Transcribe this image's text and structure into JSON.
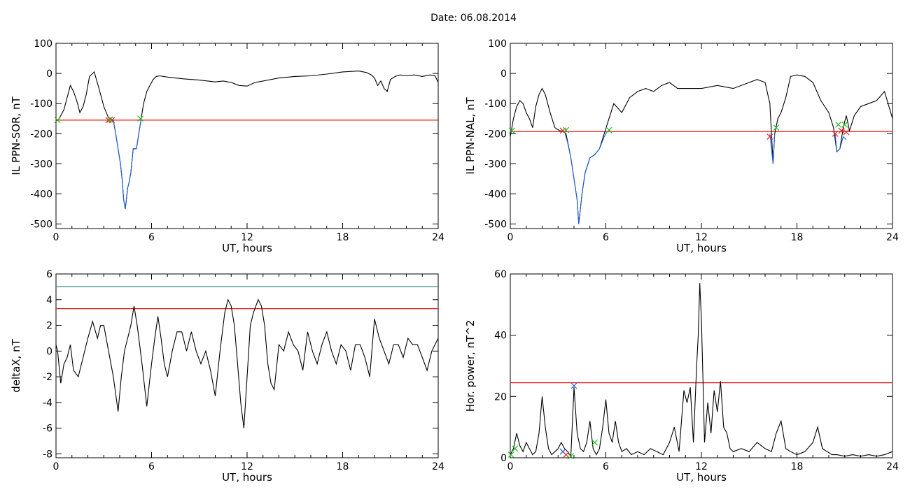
{
  "figure": {
    "title": "Date:  06.08.2014"
  },
  "chart_data": [
    {
      "id": "p1",
      "type": "line",
      "xlabel": "UT, hours",
      "ylabel": "IL PPN-SOR, nT",
      "xlim": [
        0,
        24
      ],
      "ylim": [
        -515,
        100
      ],
      "xticks": [
        0,
        6,
        12,
        18,
        24
      ],
      "yticks": [
        100,
        0,
        -100,
        -200,
        -300,
        -400,
        -500
      ],
      "series": [
        {
          "color": "#000000",
          "x": [
            0,
            0.2,
            0.5,
            0.7,
            0.9,
            1.1,
            1.3,
            1.5,
            1.7,
            1.9,
            2.1,
            2.4,
            2.7,
            3.0,
            3.3,
            3.45,
            3.6,
            3.75,
            3.9,
            4.05,
            4.15,
            4.25,
            4.35,
            4.5,
            4.6,
            4.7,
            4.85,
            4.95,
            5.05,
            5.2,
            5.35,
            5.5,
            5.7,
            5.9,
            6.1,
            6.3,
            6.5,
            7.0,
            8.0,
            9.0,
            10.0,
            10.5,
            11.0,
            11.5,
            12.0,
            12.5,
            13.0,
            14.0,
            15.0,
            16.0,
            17.0,
            18.0,
            19.0,
            19.5,
            19.8,
            20.0,
            20.2,
            20.4,
            20.6,
            20.8,
            21.0,
            21.3,
            21.6,
            22.0,
            22.5,
            23.0,
            23.5,
            23.8,
            24.0
          ],
          "y": [
            -160,
            -150,
            -120,
            -80,
            -40,
            -60,
            -90,
            -130,
            -110,
            -70,
            -10,
            5,
            -50,
            -110,
            -148,
            -152,
            -155,
            -200,
            -250,
            -300,
            -350,
            -420,
            -450,
            -380,
            -360,
            -330,
            -250,
            -250,
            -250,
            -200,
            -150,
            -100,
            -60,
            -40,
            -20,
            -10,
            -8,
            -12,
            -18,
            -22,
            -28,
            -25,
            -30,
            -40,
            -42,
            -30,
            -25,
            -15,
            -10,
            -8,
            -2,
            5,
            8,
            3,
            -5,
            -15,
            -40,
            -25,
            -50,
            -60,
            -20,
            -10,
            -5,
            -8,
            -5,
            -10,
            -5,
            -8,
            -30
          ]
        },
        {
          "color": "#1e5fd8",
          "x": [
            3.45,
            3.6,
            3.75,
            3.9,
            4.05,
            4.15,
            4.25,
            4.35,
            4.5,
            4.6,
            4.7,
            4.85,
            4.95,
            5.05,
            5.2,
            5.35
          ],
          "y": [
            -152,
            -155,
            -200,
            -250,
            -300,
            -350,
            -420,
            -450,
            -380,
            -360,
            -330,
            -250,
            -250,
            -250,
            -200,
            -150
          ]
        }
      ],
      "hlines": [
        {
          "y": -155,
          "color": "#e8201a"
        }
      ],
      "markers": [
        {
          "x": 0.1,
          "y": -155,
          "color": "#22bb22"
        },
        {
          "x": 3.3,
          "y": -155,
          "color": "#e8201a"
        },
        {
          "x": 3.5,
          "y": -155,
          "color": "#e8201a"
        },
        {
          "x": 3.4,
          "y": -153,
          "color": "#22bb22"
        },
        {
          "x": 5.3,
          "y": -150,
          "color": "#22bb22"
        }
      ]
    },
    {
      "id": "p2",
      "type": "line",
      "xlabel": "UT, hours",
      "ylabel": "IL PPN-NAL, nT",
      "xlim": [
        0,
        24
      ],
      "ylim": [
        -515,
        100
      ],
      "xticks": [
        0,
        6,
        12,
        18,
        24
      ],
      "yticks": [
        100,
        0,
        -100,
        -200,
        -300,
        -400,
        -500
      ],
      "series": [
        {
          "color": "#000000",
          "x": [
            0,
            0.2,
            0.4,
            0.6,
            0.8,
            1.0,
            1.2,
            1.4,
            1.6,
            1.8,
            2.0,
            2.2,
            2.5,
            2.8,
            3.1,
            3.3,
            3.5,
            3.8,
            4.0,
            4.2,
            4.3,
            4.5,
            4.7,
            5.0,
            5.3,
            5.6,
            5.9,
            6.2,
            6.5,
            7.0,
            7.5,
            8.0,
            8.5,
            9.0,
            9.5,
            10.0,
            10.5,
            11.0,
            12.0,
            13.0,
            14.0,
            15.0,
            15.5,
            16.0,
            16.3,
            16.5,
            16.6,
            16.8,
            17.0,
            17.3,
            17.6,
            18.0,
            18.5,
            19.0,
            19.5,
            20.0,
            20.3,
            20.5,
            20.7,
            20.9,
            21.1,
            21.3,
            21.6,
            22.0,
            22.5,
            23.0,
            23.5,
            24.0
          ],
          "y": [
            -210,
            -150,
            -110,
            -90,
            -100,
            -130,
            -150,
            -180,
            -110,
            -70,
            -50,
            -70,
            -130,
            -180,
            -190,
            -192,
            -200,
            -280,
            -350,
            -420,
            -500,
            -400,
            -330,
            -280,
            -270,
            -250,
            -200,
            -150,
            -100,
            -130,
            -80,
            -60,
            -50,
            -60,
            -40,
            -30,
            -50,
            -50,
            -50,
            -40,
            -50,
            -30,
            -20,
            -30,
            -100,
            -300,
            -200,
            -150,
            -130,
            -80,
            -10,
            -5,
            -10,
            -30,
            -90,
            -130,
            -180,
            -260,
            -250,
            -180,
            -140,
            -190,
            -140,
            -110,
            -100,
            -90,
            -60,
            -150
          ]
        },
        {
          "color": "#1e5fd8",
          "x": [
            3.4,
            3.6,
            3.8,
            4.0,
            4.2,
            4.3,
            4.5,
            4.7,
            5.0,
            5.3,
            5.6,
            5.9,
            6.1
          ],
          "y": [
            -192,
            -230,
            -280,
            -350,
            -420,
            -500,
            -400,
            -330,
            -280,
            -270,
            -250,
            -210,
            -192
          ]
        },
        {
          "color": "#1e5fd8",
          "x": [
            16.3,
            16.5,
            16.6
          ],
          "y": [
            -200,
            -300,
            -200
          ]
        },
        {
          "color": "#1e5fd8",
          "x": [
            20.4,
            20.5,
            20.7,
            20.9,
            21.1
          ],
          "y": [
            -200,
            -260,
            -250,
            -210,
            -220
          ]
        }
      ],
      "hlines": [
        {
          "y": -193,
          "color": "#e8201a"
        }
      ],
      "markers": [
        {
          "x": 0.1,
          "y": -190,
          "color": "#22bb22"
        },
        {
          "x": 3.3,
          "y": -190,
          "color": "#e8201a"
        },
        {
          "x": 3.5,
          "y": -188,
          "color": "#22bb22"
        },
        {
          "x": 6.2,
          "y": -188,
          "color": "#22bb22"
        },
        {
          "x": 16.3,
          "y": -210,
          "color": "#e8201a"
        },
        {
          "x": 16.7,
          "y": -180,
          "color": "#22bb22"
        },
        {
          "x": 20.4,
          "y": -200,
          "color": "#e8201a"
        },
        {
          "x": 20.6,
          "y": -170,
          "color": "#22bb22"
        },
        {
          "x": 20.8,
          "y": -190,
          "color": "#e8201a"
        },
        {
          "x": 21.0,
          "y": -170,
          "color": "#22bb22"
        },
        {
          "x": 21.1,
          "y": -195,
          "color": "#e8201a"
        }
      ]
    },
    {
      "id": "p3",
      "type": "line",
      "xlabel": "UT, hours",
      "ylabel": "deltaX, nT",
      "xlim": [
        0,
        24
      ],
      "ylim": [
        -8.3,
        6
      ],
      "xticks": [
        0,
        6,
        12,
        18,
        24
      ],
      "yticks": [
        6,
        4,
        2,
        0,
        -2,
        -4,
        -6,
        -8
      ],
      "series": [
        {
          "color": "#000000",
          "x": [
            0,
            0.1,
            0.3,
            0.5,
            0.7,
            0.9,
            1.1,
            1.4,
            1.7,
            2.0,
            2.3,
            2.6,
            2.8,
            3.0,
            3.3,
            3.6,
            3.9,
            4.1,
            4.3,
            4.5,
            4.7,
            4.9,
            5.1,
            5.4,
            5.7,
            6.0,
            6.2,
            6.4,
            6.6,
            6.8,
            7.0,
            7.3,
            7.6,
            7.9,
            8.2,
            8.5,
            8.8,
            9.1,
            9.4,
            9.7,
            10.0,
            10.3,
            10.6,
            10.8,
            11.0,
            11.2,
            11.4,
            11.6,
            11.8,
            12.0,
            12.2,
            12.4,
            12.7,
            12.9,
            13.1,
            13.3,
            13.5,
            13.7,
            14.0,
            14.3,
            14.6,
            14.9,
            15.2,
            15.5,
            15.8,
            16.1,
            16.4,
            16.7,
            17.0,
            17.3,
            17.6,
            17.9,
            18.2,
            18.5,
            18.8,
            19.1,
            19.4,
            19.7,
            20.0,
            20.3,
            20.6,
            20.9,
            21.2,
            21.5,
            21.8,
            22.1,
            22.4,
            22.7,
            23.0,
            23.3,
            23.6,
            24.0
          ],
          "y": [
            0.5,
            0,
            -2.5,
            -1,
            -0.5,
            0.5,
            -1.5,
            -2,
            -0.5,
            1,
            2.3,
            1,
            2,
            2,
            0,
            -2,
            -4.7,
            -2,
            0,
            1,
            2,
            3.5,
            2,
            -1,
            -4.3,
            -1,
            1,
            2.7,
            1,
            -1,
            -2,
            0,
            1.5,
            1.5,
            0,
            1.5,
            0,
            -1,
            0,
            -1.5,
            -3.5,
            0,
            3,
            4,
            3.5,
            2,
            -1,
            -4,
            -6,
            -2,
            2,
            3,
            4,
            3.5,
            2,
            -1,
            -2.5,
            -3,
            0.5,
            0,
            1.5,
            0.5,
            0,
            -1.5,
            1.5,
            0,
            -1,
            0.5,
            1.5,
            0,
            -1,
            0.5,
            0,
            -1.5,
            0.5,
            0.5,
            -0.5,
            -2,
            2.5,
            1,
            0,
            -1,
            0.5,
            0.5,
            -0.5,
            1,
            0.5,
            0.5,
            -0.5,
            -1.5,
            0,
            1
          ]
        }
      ],
      "hlines": [
        {
          "y": 5.0,
          "color": "#2a8a8a"
        },
        {
          "y": 3.3,
          "color": "#e8201a"
        }
      ],
      "markers": []
    },
    {
      "id": "p4",
      "type": "line",
      "xlabel": "UT, hours",
      "ylabel": "Hor. power, nT^2",
      "xlim": [
        0,
        24
      ],
      "ylim": [
        0,
        60
      ],
      "xticks": [
        0,
        6,
        12,
        18,
        24
      ],
      "yticks": [
        60,
        40,
        20,
        0
      ],
      "series": [
        {
          "color": "#000000",
          "x": [
            0,
            0.2,
            0.4,
            0.6,
            0.8,
            1.0,
            1.2,
            1.4,
            1.6,
            1.8,
            2.0,
            2.2,
            2.4,
            2.6,
            2.8,
            3.0,
            3.2,
            3.4,
            3.6,
            3.8,
            4.0,
            4.2,
            4.4,
            4.6,
            4.8,
            5.0,
            5.2,
            5.4,
            5.6,
            5.8,
            6.0,
            6.2,
            6.4,
            6.6,
            6.8,
            7.0,
            7.3,
            7.6,
            8.0,
            8.4,
            8.8,
            9.2,
            9.6,
            10.0,
            10.3,
            10.6,
            10.9,
            11.1,
            11.3,
            11.5,
            11.7,
            11.8,
            11.9,
            12.0,
            12.1,
            12.2,
            12.4,
            12.6,
            12.8,
            13.0,
            13.2,
            13.4,
            13.6,
            13.8,
            14.0,
            14.5,
            15.0,
            15.5,
            16.0,
            16.4,
            16.7,
            17.0,
            17.3,
            17.6,
            18.0,
            18.5,
            19.0,
            19.3,
            19.6,
            19.9,
            20.2,
            20.5,
            21.0,
            21.5,
            22.0,
            22.5,
            23.0,
            23.5,
            24.0
          ],
          "y": [
            1,
            3,
            8,
            4,
            2,
            5,
            3,
            1,
            2,
            8,
            20,
            10,
            3,
            1,
            2,
            3,
            5,
            3,
            2,
            0.5,
            23,
            8,
            3,
            2,
            5,
            12,
            3,
            1,
            3,
            10,
            19,
            8,
            5,
            12,
            5,
            2,
            3,
            1,
            2,
            1,
            3,
            2,
            1,
            5,
            10,
            2,
            22,
            18,
            23,
            5,
            30,
            40,
            57,
            45,
            25,
            5,
            18,
            8,
            22,
            15,
            25,
            10,
            8,
            3,
            2,
            3,
            2,
            5,
            3,
            2,
            8,
            12,
            3,
            2,
            1,
            2,
            5,
            10,
            3,
            2,
            1,
            1,
            0.5,
            1,
            0.5,
            1,
            0.5,
            1,
            2
          ]
        }
      ],
      "hlines": [
        {
          "y": 24.5,
          "color": "#e8201a"
        }
      ],
      "markers": [
        {
          "x": 0.05,
          "y": 1,
          "color": "#22bb22"
        },
        {
          "x": 0.3,
          "y": 3,
          "color": "#22bb22"
        },
        {
          "x": 3.3,
          "y": 2,
          "color": "#1e5fd8"
        },
        {
          "x": 3.5,
          "y": 1,
          "color": "#e8201a"
        },
        {
          "x": 3.8,
          "y": 0.5,
          "color": "#22bb22"
        },
        {
          "x": 4.0,
          "y": 23.5,
          "color": "#1e5fd8"
        },
        {
          "x": 5.3,
          "y": 5,
          "color": "#22bb22"
        }
      ]
    }
  ]
}
